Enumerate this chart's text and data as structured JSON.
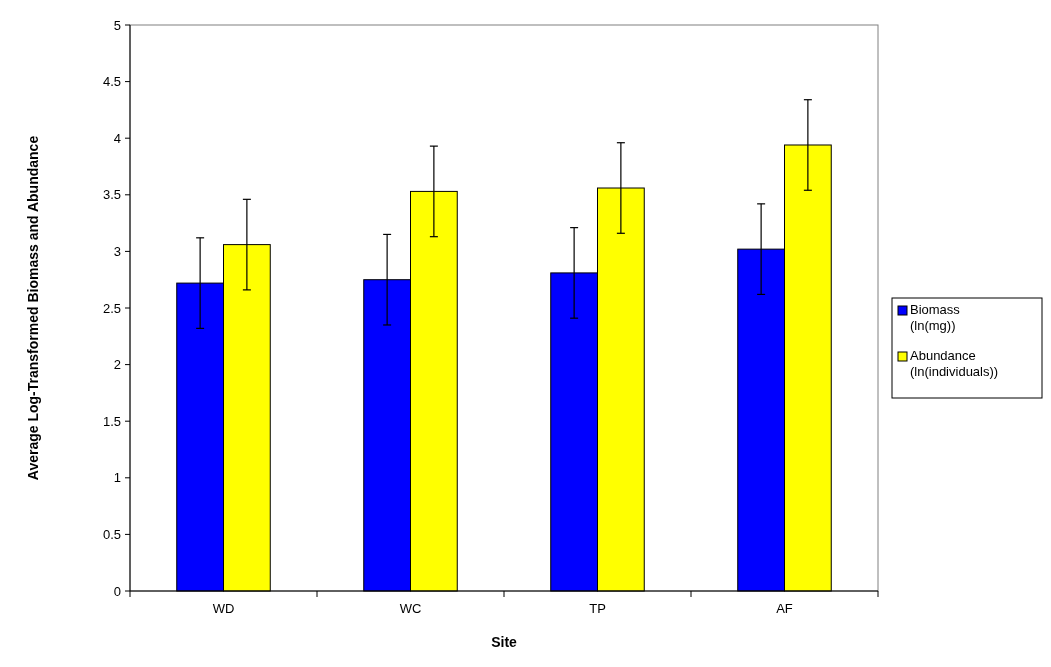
{
  "chart_data": {
    "type": "bar",
    "xlabel": "Site",
    "ylabel": "Average Log-Transformed Biomass and Abundance",
    "categories": [
      "WD",
      "WC",
      "TP",
      "AF"
    ],
    "series": [
      {
        "name": "Biomass (ln(mg))",
        "color": "#0000ff",
        "values": [
          2.72,
          2.75,
          2.81,
          3.02
        ],
        "errors": [
          0.4,
          0.4,
          0.4,
          0.4
        ]
      },
      {
        "name": "Abundance (ln(individuals))",
        "color": "#ffff00",
        "values": [
          3.06,
          3.53,
          3.56,
          3.94
        ],
        "errors": [
          0.4,
          0.4,
          0.4,
          0.4
        ]
      }
    ],
    "ylim": [
      0,
      5
    ],
    "yticks": [
      0,
      0.5,
      1,
      1.5,
      2,
      2.5,
      3,
      3.5,
      4,
      4.5,
      5
    ],
    "legend": "right",
    "grid": false
  }
}
